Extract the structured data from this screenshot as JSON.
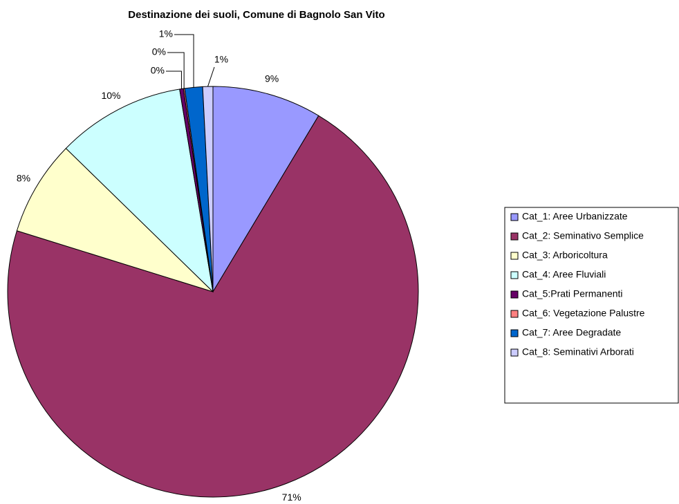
{
  "chart_data": {
    "type": "pie",
    "title": "Destinazione dei suoli, Comune di Bagnolo San Vito",
    "categories": [
      "Cat_1: Aree Urbanizzate",
      "Cat_2: Seminativo Semplice",
      "Cat_3: Arboricoltura",
      "Cat_4: Aree Fluviali",
      "Cat_5:Prati Permanenti",
      "Cat_6: Vegetazione Palustre",
      "Cat_7: Aree Degradate",
      "Cat_8: Seminativi Arborati"
    ],
    "values": [
      8.6,
      71.2,
      7.5,
      10.1,
      0.3,
      0.1,
      1.4,
      0.8
    ],
    "value_labels": [
      "9%",
      "71%",
      "8%",
      "10%",
      "0%",
      "0%",
      "1%",
      "1%"
    ],
    "colors": [
      "#9999ff",
      "#993366",
      "#ffffcc",
      "#ccffff",
      "#660066",
      "#ff8080",
      "#0066cc",
      "#ccccff"
    ],
    "legend": "right"
  }
}
